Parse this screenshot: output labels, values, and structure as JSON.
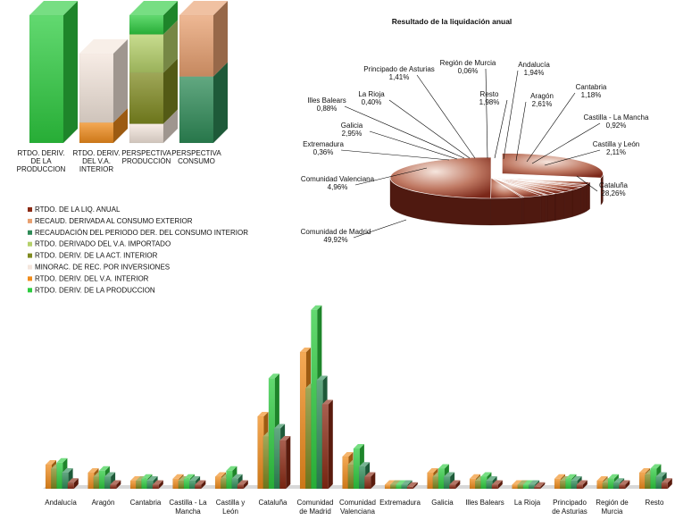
{
  "colors": {
    "rtdo_liq": "#8b2a14",
    "recaud_exterior": "#e8a070",
    "recaud_interior": "#2e8b57",
    "rtdo_importado": "#b5d06a",
    "rtdo_act_interior": "#7f8a20",
    "minorac": "#f4e6dc",
    "rtdo_va_interior": "#f08c1c",
    "rtdo_produccion": "#2ecc40"
  },
  "chart_data": [
    {
      "type": "bar",
      "title": "",
      "categories": [
        "RTDO. DERIV. DE LA PRODUCCION",
        "RTDO. DERIV. DEL V.A. INTERIOR",
        "PERSPECTIVA PRODUCCIÓN",
        "PERSPECTIVA CONSUMO"
      ],
      "category_lines": [
        [
          "RTDO. DERIV.",
          "DE LA",
          "PRODUCCION"
        ],
        [
          "RTDO. DERIV.",
          "DEL V.A.",
          "INTERIOR"
        ],
        [
          "PERSPECTIVA",
          "PRODUCCIÓN"
        ],
        [
          "PERSPECTIVA",
          "CONSUMO"
        ]
      ],
      "stacked": true,
      "ylim": [
        0,
        100
      ],
      "stacks": [
        [
          {
            "series": "RTDO. DERIV. DE LA PRODUCCION",
            "value": 100
          }
        ],
        [
          {
            "series": "RTDO. DERIV. DEL V.A. INTERIOR",
            "value": 16
          },
          {
            "series": "MINORAC. DE REC. POR INVERSIONES",
            "value": 54
          }
        ],
        [
          {
            "series": "MINORAC. DE REC. POR INVERSIONES",
            "value": 15
          },
          {
            "series": "RTDO. DERIV. DE LA ACT. INTERIOR",
            "value": 40
          },
          {
            "series": "RTDO. DERIVADO DEL V.A. IMPORTADO",
            "value": 30
          },
          {
            "series": "RTDO. DERIV. DE LA PRODUCCION",
            "value": 15
          }
        ],
        [
          {
            "series": "RECAUDACIÓN DEL PERIODO DER. DEL CONSUMO INTERIOR",
            "value": 52
          },
          {
            "series": "RECAUD. DERIVADA AL CONSUMO EXTERIOR",
            "value": 48
          }
        ]
      ]
    },
    {
      "type": "pie",
      "title": "Resultado de la liquidación anual",
      "slices": [
        {
          "label": "Cataluña",
          "value": 28.26,
          "text": "28,26%"
        },
        {
          "label": "Castilla y León",
          "value": 2.11,
          "text": "2,11%"
        },
        {
          "label": "Castilla - La Mancha",
          "value": 0.92,
          "text": "0,92%"
        },
        {
          "label": "Cantabria",
          "value": 1.18,
          "text": "1,18%"
        },
        {
          "label": "Aragón",
          "value": 2.61,
          "text": "2,61%"
        },
        {
          "label": "Andalucía",
          "value": 1.94,
          "text": "1,94%"
        },
        {
          "label": "Resto",
          "value": 1.98,
          "text": "1,98%"
        },
        {
          "label": "Región de Murcia",
          "value": 0.06,
          "text": "0,06%"
        },
        {
          "label": "Principado de Asturias",
          "value": 1.41,
          "text": "1,41%"
        },
        {
          "label": "La Rioja",
          "value": 0.4,
          "text": "0,40%"
        },
        {
          "label": "Illes Balears",
          "value": 0.88,
          "text": "0,88%"
        },
        {
          "label": "Galicia",
          "value": 2.95,
          "text": "2,95%"
        },
        {
          "label": "Extremadura",
          "value": 0.36,
          "text": "0,36%"
        },
        {
          "label": "Comunidad Valenciana",
          "value": 4.96,
          "text": "4,96%"
        },
        {
          "label": "Comunidad de Madrid",
          "value": 49.92,
          "text": "49,92%"
        }
      ]
    },
    {
      "type": "bar",
      "title": "",
      "categories": [
        "Andalucía",
        "Aragón",
        "Cantabria",
        "Castilla - La Mancha",
        "Castilla y León",
        "Cataluña",
        "Comunidad de Madrid",
        "Comunidad Valenciana",
        "Extremadura",
        "Galicia",
        "Illes Balears",
        "La Rioja",
        "Principado de Asturias",
        "Región de Murcia",
        "Resto"
      ],
      "category_lines": [
        [
          "Andalucía"
        ],
        [
          "Aragón"
        ],
        [
          "Cantabria"
        ],
        [
          "Castilla - La",
          "Mancha"
        ],
        [
          "Castilla y",
          "León"
        ],
        [
          "Cataluña"
        ],
        [
          "Comunidad",
          "de Madrid"
        ],
        [
          "Comunidad",
          "Valenciana"
        ],
        [
          "Extremadura"
        ],
        [
          "Galicia"
        ],
        [
          "Illes Balears"
        ],
        [
          "La Rioja"
        ],
        [
          "Principado",
          "de Asturias"
        ],
        [
          "Región de",
          "Murcia"
        ],
        [
          "Resto"
        ]
      ],
      "ylim": [
        0,
        100
      ],
      "series": [
        {
          "name": "RTDO. DERIV. DEL V.A. INTERIOR",
          "values": [
            12,
            8,
            4,
            5,
            6,
            36,
            68,
            16,
            2,
            8,
            5,
            2,
            5,
            4,
            8
          ]
        },
        {
          "name": "RTDO. DERIV. DE LA ACT. INTERIOR",
          "values": [
            10,
            6,
            4,
            4,
            5,
            26,
            50,
            12,
            2,
            6,
            4,
            2,
            4,
            3,
            7
          ]
        },
        {
          "name": "RTDO. DERIV. DE LA PRODUCCION",
          "values": [
            13,
            9,
            5,
            5,
            9,
            55,
            89,
            20,
            2,
            10,
            6,
            2,
            5,
            5,
            10
          ]
        },
        {
          "name": "RECAUDACIÓN DEL PERIODO DER. DEL CONSUMO INTERIOR",
          "values": [
            8,
            6,
            4,
            4,
            5,
            30,
            54,
            11,
            2,
            6,
            4,
            2,
            4,
            3,
            6
          ]
        },
        {
          "name": "RTDO. DE LA LIQ. ANUAL",
          "values": [
            3,
            2,
            2,
            2,
            2,
            24,
            42,
            6,
            1,
            2,
            2,
            1,
            2,
            2,
            3
          ]
        }
      ]
    }
  ],
  "legend": [
    {
      "label": "RTDO. DE LA LIQ. ANUAL",
      "color": "#8b2a14"
    },
    {
      "label": "RECAUD. DERIVADA AL CONSUMO EXTERIOR",
      "color": "#e8a070"
    },
    {
      "label": "RECAUDACIÓN DEL PERIODO DER. DEL CONSUMO INTERIOR",
      "color": "#2e8b57"
    },
    {
      "label": "RTDO. DERIVADO DEL V.A. IMPORTADO",
      "color": "#b5d06a"
    },
    {
      "label": "RTDO. DERIV. DE LA ACT. INTERIOR",
      "color": "#7f8a20"
    },
    {
      "label": "MINORAC. DE REC. POR INVERSIONES",
      "color": "#f4e6dc"
    },
    {
      "label": "RTDO. DERIV. DEL V.A. INTERIOR",
      "color": "#f08c1c"
    },
    {
      "label": "RTDO. DERIV. DE LA PRODUCCION",
      "color": "#2ecc40"
    }
  ]
}
